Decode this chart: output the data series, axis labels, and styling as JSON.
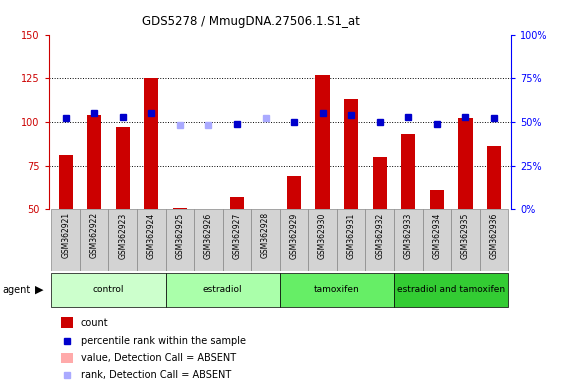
{
  "title": "GDS5278 / MmugDNA.27506.1.S1_at",
  "samples": [
    "GSM362921",
    "GSM362922",
    "GSM362923",
    "GSM362924",
    "GSM362925",
    "GSM362926",
    "GSM362927",
    "GSM362928",
    "GSM362929",
    "GSM362930",
    "GSM362931",
    "GSM362932",
    "GSM362933",
    "GSM362934",
    "GSM362935",
    "GSM362936"
  ],
  "count_values": [
    81,
    104,
    97,
    125,
    51,
    null,
    57,
    null,
    69,
    127,
    113,
    80,
    93,
    61,
    102,
    86
  ],
  "count_absent": [
    false,
    false,
    false,
    false,
    false,
    true,
    false,
    true,
    false,
    false,
    false,
    false,
    false,
    false,
    false,
    false
  ],
  "rank_values": [
    52,
    55,
    53,
    55,
    48,
    48,
    49,
    52,
    50,
    55,
    54,
    50,
    53,
    49,
    53,
    52
  ],
  "rank_absent": [
    false,
    false,
    false,
    false,
    true,
    true,
    false,
    true,
    false,
    false,
    false,
    false,
    false,
    false,
    false,
    false
  ],
  "groups": [
    {
      "label": "control",
      "start": 0,
      "end": 3,
      "color": "#ccffcc"
    },
    {
      "label": "estradiol",
      "start": 4,
      "end": 7,
      "color": "#aaffaa"
    },
    {
      "label": "tamoxifen",
      "start": 8,
      "end": 11,
      "color": "#66ee66"
    },
    {
      "label": "estradiol and tamoxifen",
      "start": 12,
      "end": 15,
      "color": "#33cc33"
    }
  ],
  "ylim_left": [
    50,
    150
  ],
  "ylim_right": [
    0,
    100
  ],
  "yticks_left": [
    50,
    75,
    100,
    125,
    150
  ],
  "yticks_right": [
    0,
    25,
    50,
    75,
    100
  ],
  "ytick_labels_right": [
    "0%",
    "25%",
    "50%",
    "75%",
    "100%"
  ],
  "bar_color_present": "#cc0000",
  "bar_color_absent": "#ffaaaa",
  "dot_color_present": "#0000cc",
  "dot_color_absent": "#aaaaff",
  "background_color": "#ffffff"
}
